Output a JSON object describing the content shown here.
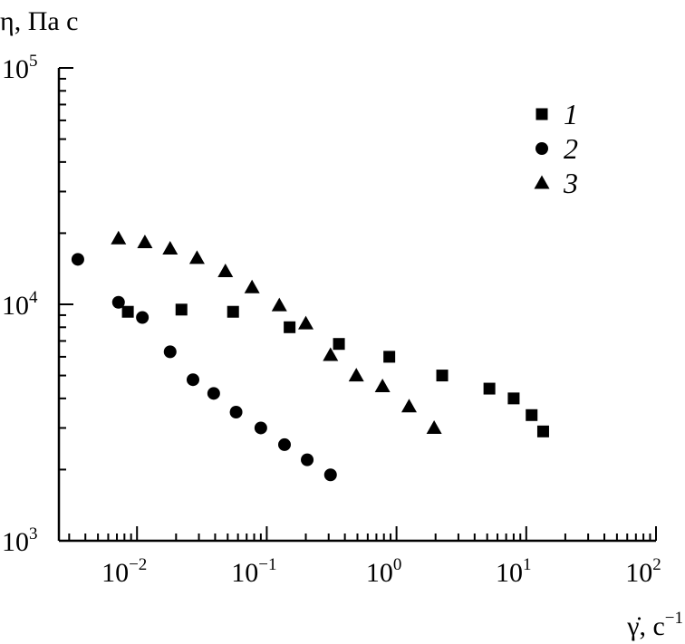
{
  "chart_data": {
    "type": "scatter",
    "x_scale": "log",
    "y_scale": "log",
    "ylabel": "η, Па с",
    "xlabel_prefix": "γ̇, с",
    "xlabel_exp": "−1",
    "xlim": [
      0.0025,
      100
    ],
    "ylim": [
      1000,
      100000
    ],
    "x_ticks": [
      {
        "value": 0.01,
        "base": "10",
        "exp": "−2"
      },
      {
        "value": 0.1,
        "base": "10",
        "exp": "−1"
      },
      {
        "value": 1,
        "base": "10",
        "exp": "0"
      },
      {
        "value": 10,
        "base": "10",
        "exp": "1"
      },
      {
        "value": 100,
        "base": "10",
        "exp": "2"
      }
    ],
    "y_ticks": [
      {
        "value": 1000,
        "base": "10",
        "exp": "3"
      },
      {
        "value": 10000,
        "base": "10",
        "exp": "4"
      },
      {
        "value": 100000,
        "base": "10",
        "exp": "5"
      }
    ],
    "legend_position": "top-right",
    "grid": false,
    "series": [
      {
        "name": "1",
        "marker": "square",
        "points": [
          [
            0.0085,
            9300
          ],
          [
            0.022,
            9500
          ],
          [
            0.055,
            9300
          ],
          [
            0.15,
            8000
          ],
          [
            0.36,
            6800
          ],
          [
            0.88,
            6000
          ],
          [
            2.25,
            5000
          ],
          [
            5.2,
            4400
          ],
          [
            8.0,
            4000
          ],
          [
            11.0,
            3400
          ],
          [
            13.5,
            2900
          ]
        ]
      },
      {
        "name": "2",
        "marker": "circle",
        "points": [
          [
            0.0035,
            15500
          ],
          [
            0.0072,
            10200
          ],
          [
            0.011,
            8800
          ],
          [
            0.018,
            6300
          ],
          [
            0.027,
            4800
          ],
          [
            0.039,
            4200
          ],
          [
            0.058,
            3500
          ],
          [
            0.09,
            3000
          ],
          [
            0.137,
            2550
          ],
          [
            0.205,
            2200
          ],
          [
            0.31,
            1900
          ]
        ]
      },
      {
        "name": "3",
        "marker": "triangle",
        "points": [
          [
            0.0072,
            19000
          ],
          [
            0.0115,
            18300
          ],
          [
            0.018,
            17200
          ],
          [
            0.029,
            15700
          ],
          [
            0.048,
            13800
          ],
          [
            0.077,
            11800
          ],
          [
            0.125,
            9900
          ],
          [
            0.2,
            8300
          ],
          [
            0.31,
            6100
          ],
          [
            0.49,
            5000
          ],
          [
            0.78,
            4500
          ],
          [
            1.25,
            3700
          ],
          [
            1.95,
            3000
          ]
        ]
      }
    ]
  }
}
